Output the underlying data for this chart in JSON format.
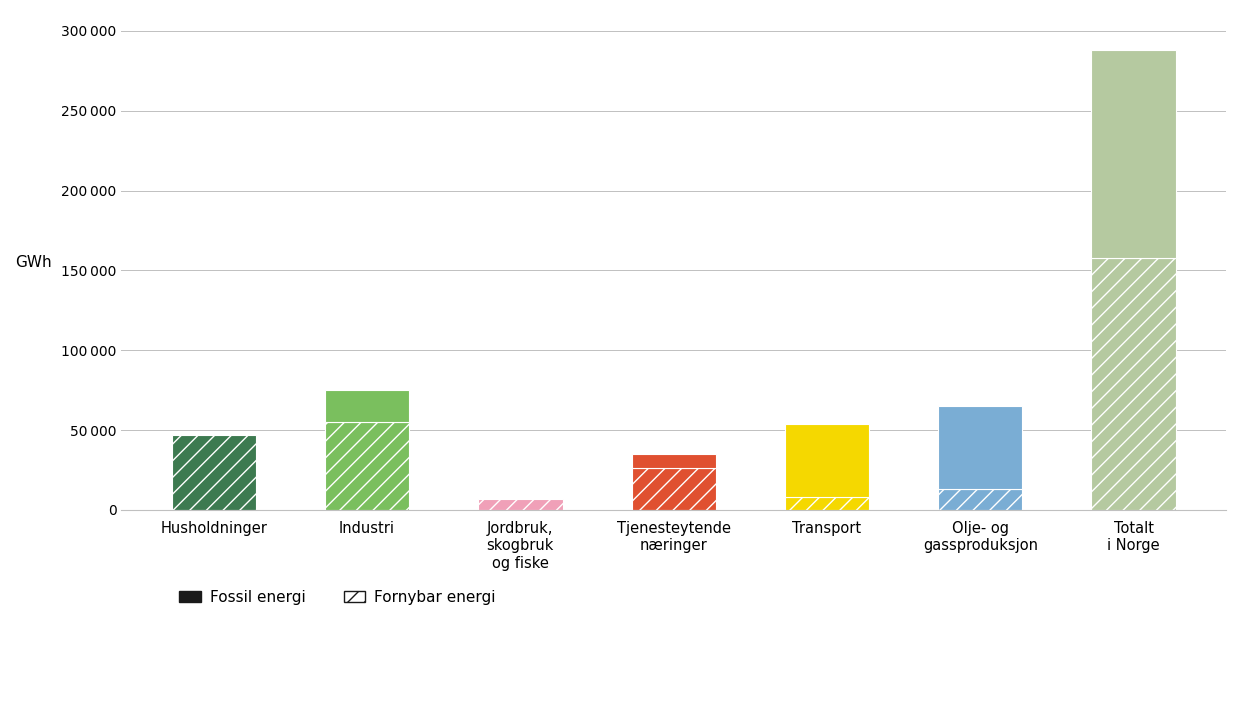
{
  "categories": [
    "Husholdninger",
    "Industri",
    "Jordbruk,\nskogbruk\nog fiske",
    "Tjenesteytende\nnæringer",
    "Transport",
    "Olje- og\ngassproduksjon",
    "Totalt\ni Norge"
  ],
  "renewable_vals": [
    47000,
    55000,
    7000,
    26000,
    8000,
    13000,
    158000
  ],
  "fossil_vals": [
    0,
    20000,
    0,
    9000,
    46000,
    52000,
    130000
  ],
  "colors": [
    "#3d7a50",
    "#7abf5e",
    "#f0a0b8",
    "#e05030",
    "#f5d800",
    "#7aadd4",
    "#b5c9a0"
  ],
  "hatch_edge_colors": [
    "#3d7a50",
    "#7abf5e",
    "#f0a0b8",
    "#e05030",
    "#f5d800",
    "#7aadd4",
    "#b5c9a0"
  ],
  "ylabel": "GWh",
  "ylim": [
    0,
    310000
  ],
  "yticks": [
    0,
    50000,
    100000,
    150000,
    200000,
    250000,
    300000
  ],
  "background_color": "#ffffff",
  "bar_width": 0.55
}
